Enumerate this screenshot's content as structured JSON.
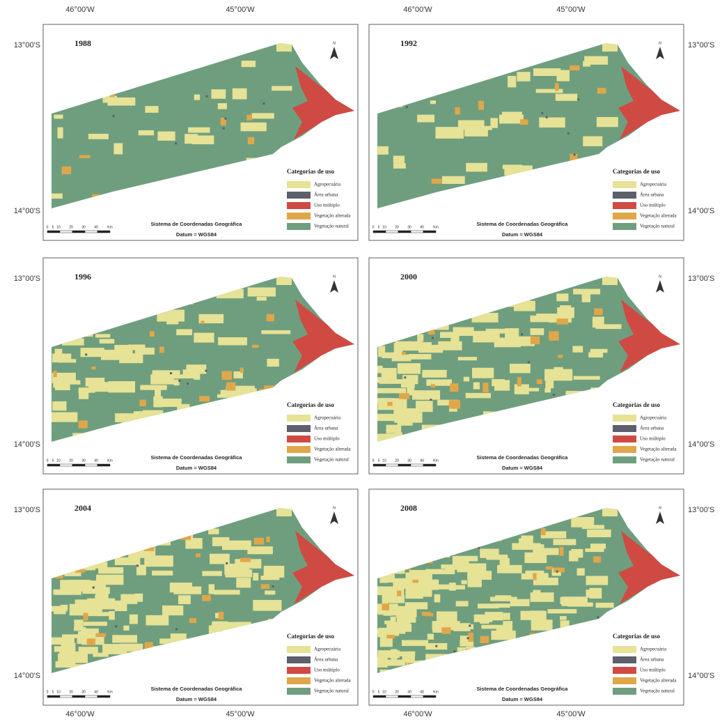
{
  "coordinate_labels": {
    "longitudes": [
      "46°00'W",
      "45°00'W"
    ],
    "latitudes": [
      "13°00'S",
      "14°00'S"
    ]
  },
  "north": "N",
  "legend": {
    "title": "Categorias de uso",
    "items": [
      {
        "label": "Agropecuária",
        "color": "#e6e296"
      },
      {
        "label": "Área urbana",
        "color": "#5d5f6a"
      },
      {
        "label": "Uso múltiplo",
        "color": "#cf4a43"
      },
      {
        "label": "Vegetação alterada",
        "color": "#e0a74a"
      },
      {
        "label": "Vegetação natural",
        "color": "#6f9e7e"
      }
    ]
  },
  "scale_labels": [
    "0",
    "5",
    "10",
    "20",
    "30",
    "40",
    "Km"
  ],
  "coordinate_system": "Sistema de Coordenadas Geográfica",
  "datum": "Datum = WGS84",
  "panels": [
    {
      "year": "1988"
    },
    {
      "year": "1992"
    },
    {
      "year": "1996"
    },
    {
      "year": "2000"
    },
    {
      "year": "2004"
    },
    {
      "year": "2008"
    }
  ]
}
